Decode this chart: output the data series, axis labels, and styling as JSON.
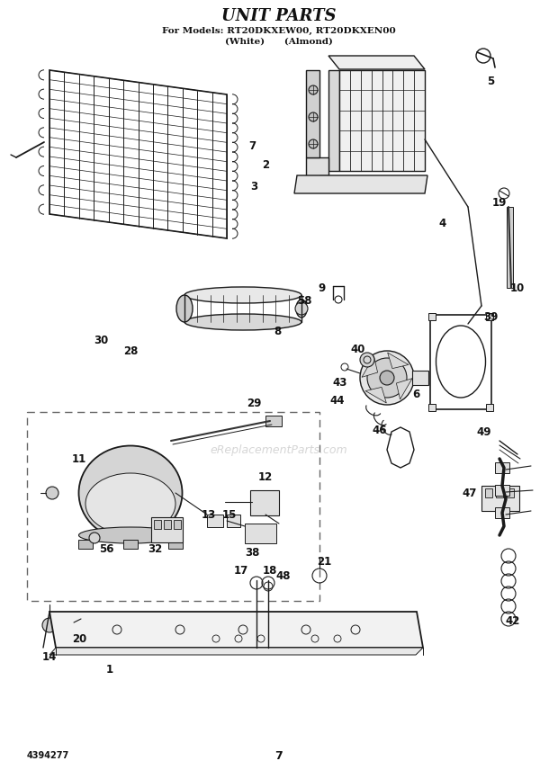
{
  "title": "UNIT PARTS",
  "subtitle1": "For Models: RT20DKXEW00, RT20DKXEN00",
  "subtitle2": "(White)      (Almond)",
  "page_number": "7",
  "doc_number": "4394277",
  "watermark": "eReplacementParts.com",
  "bg": "#ffffff",
  "lc": "#1a1a1a",
  "tc": "#111111",
  "title_fs": 13,
  "sub_fs": 7.5,
  "label_fs": 8.5,
  "watermark_color": "#bbbbbb",
  "footer_fs": 7
}
